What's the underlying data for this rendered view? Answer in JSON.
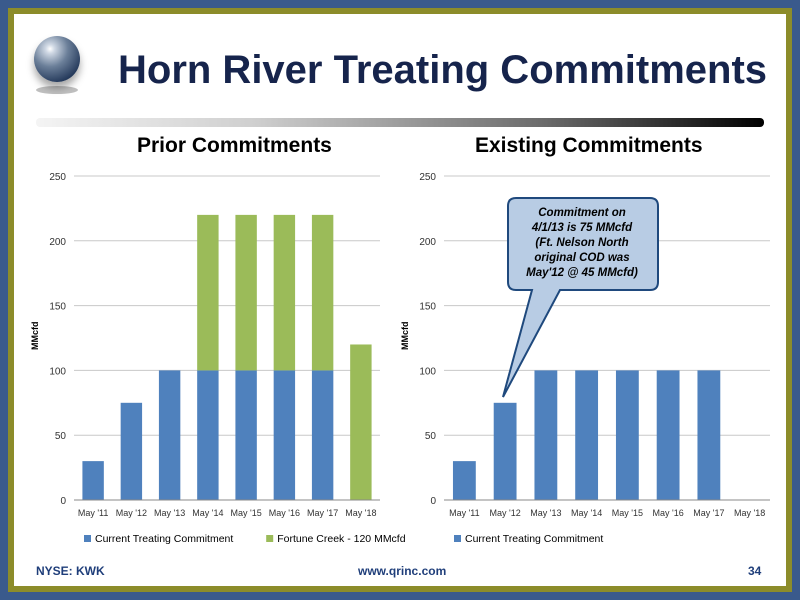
{
  "slide": {
    "title": "Horn River Treating Commitments",
    "footer_left": "NYSE:  KWK",
    "footer_center": "www.qrinc.com",
    "page_number": "34",
    "colors": {
      "frame_outer": "#3a5a8c",
      "frame_inner": "#8c8c2a",
      "title": "#16244c",
      "footer": "#1f3e7a"
    }
  },
  "chart_data": [
    {
      "type": "bar",
      "stacked": true,
      "title": "Prior Commitments",
      "ylabel": "MMcfd",
      "ylim": [
        0,
        250
      ],
      "yticks": [
        0,
        50,
        100,
        150,
        200,
        250
      ],
      "categories": [
        "May '11",
        "May '12",
        "May '13",
        "May '14",
        "May '15",
        "May '16",
        "May '17",
        "May '18"
      ],
      "series": [
        {
          "name": "Current Treating Commitment",
          "color": "#4f81bd",
          "values": [
            30,
            75,
            100,
            100,
            100,
            100,
            100,
            0
          ]
        },
        {
          "name": "Fortune Creek - 120 MMcfd",
          "color": "#9bbb59",
          "values": [
            0,
            0,
            0,
            120,
            120,
            120,
            120,
            120
          ]
        }
      ],
      "grid": true,
      "legend": "bottom"
    },
    {
      "type": "bar",
      "stacked": true,
      "title": "Existing Commitments",
      "ylabel": "MMcfd",
      "ylim": [
        0,
        250
      ],
      "yticks": [
        0,
        50,
        100,
        150,
        200,
        250
      ],
      "categories": [
        "May '11",
        "May '12",
        "May '13",
        "May '14",
        "May '15",
        "May '16",
        "May '17",
        "May '18"
      ],
      "series": [
        {
          "name": "Current Treating Commitment",
          "color": "#4f81bd",
          "values": [
            30,
            75,
            100,
            100,
            100,
            100,
            100,
            0
          ]
        }
      ],
      "grid": true,
      "legend": "bottom",
      "annotation": {
        "lines": [
          "Commitment on",
          "4/1/13 is 75 MMcfd",
          "(Ft. Nelson North",
          "original COD was",
          "May'12 @ 45 MMcfd)"
        ],
        "points_to": "May '12"
      }
    }
  ]
}
